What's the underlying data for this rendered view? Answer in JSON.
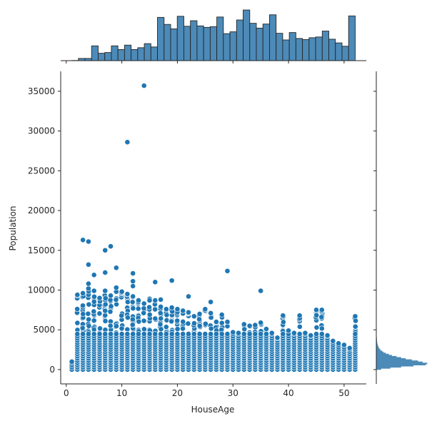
{
  "chart_data": {
    "type": "scatter",
    "xlabel": "HouseAge",
    "ylabel": "Population",
    "xlim": [
      -1,
      54
    ],
    "ylim": [
      -1800,
      37500
    ],
    "xticks": [
      0,
      10,
      20,
      30,
      40,
      50
    ],
    "yticks": [
      0,
      5000,
      10000,
      15000,
      20000,
      25000,
      30000,
      35000
    ],
    "grid": false,
    "marker_color": "#1f77b4",
    "hist_fill": "#4c8ab8",
    "outliers": [
      {
        "x": 14,
        "y": 35700
      },
      {
        "x": 11,
        "y": 28600
      },
      {
        "x": 3,
        "y": 16300
      },
      {
        "x": 4,
        "y": 16100
      },
      {
        "x": 8,
        "y": 15500
      },
      {
        "x": 7,
        "y": 15000
      },
      {
        "x": 4,
        "y": 13200
      },
      {
        "x": 9,
        "y": 12800
      },
      {
        "x": 29,
        "y": 12400
      },
      {
        "x": 7,
        "y": 12200
      },
      {
        "x": 12,
        "y": 12100
      },
      {
        "x": 5,
        "y": 11900
      },
      {
        "x": 19,
        "y": 11200
      },
      {
        "x": 12,
        "y": 11100
      },
      {
        "x": 16,
        "y": 11000
      },
      {
        "x": 4,
        "y": 10800
      },
      {
        "x": 12,
        "y": 10500
      },
      {
        "x": 9,
        "y": 10300
      },
      {
        "x": 35,
        "y": 9900
      },
      {
        "x": 22,
        "y": 9200
      },
      {
        "x": 2,
        "y": 9400
      },
      {
        "x": 26,
        "y": 8500
      },
      {
        "x": 17,
        "y": 8800
      },
      {
        "x": 15,
        "y": 8700
      }
    ],
    "column_tops": [
      [
        1,
        1000
      ],
      [
        2,
        9400
      ],
      [
        3,
        9600
      ],
      [
        4,
        10200
      ],
      [
        5,
        9900
      ],
      [
        6,
        9000
      ],
      [
        7,
        9900
      ],
      [
        8,
        9300
      ],
      [
        9,
        9800
      ],
      [
        10,
        9800
      ],
      [
        11,
        9500
      ],
      [
        12,
        9200
      ],
      [
        13,
        8700
      ],
      [
        14,
        8300
      ],
      [
        15,
        8900
      ],
      [
        16,
        8700
      ],
      [
        17,
        7900
      ],
      [
        18,
        7600
      ],
      [
        19,
        7800
      ],
      [
        20,
        7600
      ],
      [
        21,
        7400
      ],
      [
        22,
        7200
      ],
      [
        23,
        6700
      ],
      [
        24,
        7000
      ],
      [
        25,
        7600
      ],
      [
        26,
        7100
      ],
      [
        27,
        6000
      ],
      [
        28,
        6900
      ],
      [
        29,
        6000
      ],
      [
        30,
        4700
      ],
      [
        31,
        4600
      ],
      [
        32,
        5700
      ],
      [
        33,
        5500
      ],
      [
        34,
        5600
      ],
      [
        35,
        5900
      ],
      [
        36,
        5100
      ],
      [
        37,
        4600
      ],
      [
        38,
        4000
      ],
      [
        39,
        6800
      ],
      [
        40,
        4900
      ],
      [
        41,
        4600
      ],
      [
        42,
        6800
      ],
      [
        43,
        4600
      ],
      [
        44,
        4300
      ],
      [
        45,
        7500
      ],
      [
        46,
        7500
      ],
      [
        47,
        4300
      ],
      [
        48,
        3600
      ],
      [
        49,
        3300
      ],
      [
        50,
        3100
      ],
      [
        51,
        2700
      ],
      [
        52,
        6700
      ]
    ],
    "x_hist_counts": [
      5,
      60,
      60,
      400,
      200,
      220,
      400,
      300,
      420,
      300,
      350,
      460,
      370,
      1170,
      980,
      860,
      1200,
      930,
      1080,
      940,
      900,
      920,
      1180,
      730,
      780,
      1100,
      1370,
      1010,
      880,
      990,
      1240,
      740,
      560,
      760,
      600,
      570,
      620,
      640,
      800,
      580,
      480,
      390,
      1210
    ],
    "y_hist_counts": [
      30,
      90,
      160,
      240,
      320,
      330,
      300,
      270,
      230,
      190,
      160,
      130,
      100,
      80,
      60,
      45,
      35,
      25,
      20,
      15,
      12,
      9,
      7,
      5,
      4,
      3,
      3,
      2,
      2,
      1
    ]
  }
}
